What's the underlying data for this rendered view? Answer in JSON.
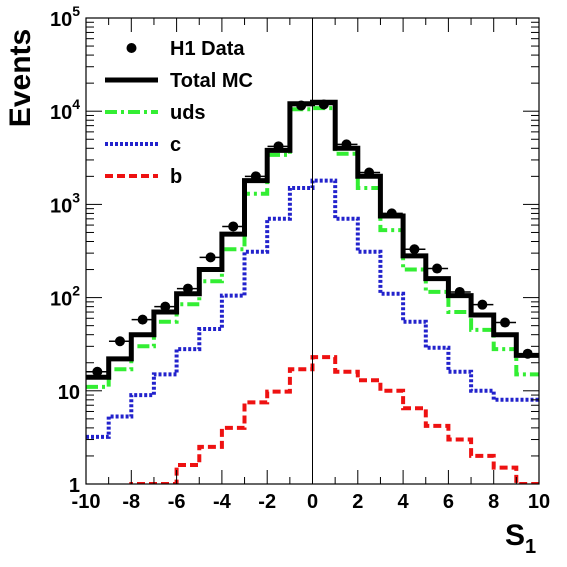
{
  "chart_data": {
    "type": "line",
    "title": "",
    "xlabel": "S",
    "xlabel_subscript": "1",
    "ylabel": "Events",
    "xlim": [
      -10,
      10
    ],
    "ylim": [
      1,
      100000
    ],
    "y_scale": "log",
    "grid": false,
    "legend_position": "top-left",
    "x_ticks": [
      -10,
      -8,
      -6,
      -4,
      -2,
      0,
      2,
      4,
      6,
      8,
      10
    ],
    "x_tick_labels": [
      "-10",
      "-8",
      "-6",
      "-4",
      "-2",
      "0",
      "2",
      "4",
      "6",
      "8",
      "10"
    ],
    "y_ticks": [
      1,
      10,
      100,
      1000,
      10000,
      100000
    ],
    "y_tick_labels": [
      {
        "base": "1",
        "exp": ""
      },
      {
        "base": "10",
        "exp": ""
      },
      {
        "base": "10",
        "exp": "2"
      },
      {
        "base": "10",
        "exp": "3"
      },
      {
        "base": "10",
        "exp": "4"
      },
      {
        "base": "10",
        "exp": "5"
      }
    ],
    "bin_edges": [
      -10,
      -9,
      -8,
      -7,
      -6,
      -5,
      -4,
      -3,
      -2,
      -1,
      0,
      1,
      2,
      3,
      4,
      5,
      6,
      7,
      8,
      9,
      10
    ],
    "data_points": {
      "name": "H1 Data",
      "x": [
        -9.5,
        -8.5,
        -7.5,
        -6.5,
        -5.5,
        -4.5,
        -3.5,
        -2.5,
        -1.5,
        -0.5,
        0.5,
        1.5,
        2.5,
        3.5,
        4.5,
        5.5,
        6.5,
        7.5,
        8.5,
        9.5
      ],
      "y": [
        16,
        34,
        58,
        80,
        125,
        270,
        580,
        2000,
        4200,
        11500,
        11800,
        4400,
        2200,
        800,
        330,
        205,
        115,
        84,
        54,
        25
      ],
      "color": "#000000"
    },
    "series": [
      {
        "name": "Total MC",
        "style": "solid",
        "color": "#000000",
        "values": [
          14,
          22,
          40,
          70,
          110,
          200,
          480,
          1800,
          3800,
          12000,
          12500,
          4000,
          2000,
          750,
          280,
          160,
          105,
          65,
          40,
          24
        ]
      },
      {
        "name": "uds",
        "style": "dash-dot",
        "color": "#33ee33",
        "values": [
          11,
          17,
          30,
          55,
          85,
          150,
          330,
          1300,
          3400,
          10500,
          10800,
          3500,
          1500,
          530,
          200,
          115,
          70,
          45,
          28,
          15
        ]
      },
      {
        "name": "c",
        "style": "dotted",
        "color": "#2222cc",
        "values": [
          3.2,
          5.3,
          9,
          15,
          28,
          46,
          105,
          310,
          700,
          1500,
          1800,
          700,
          310,
          110,
          55,
          29,
          16,
          10,
          8,
          8
        ]
      },
      {
        "name": "b",
        "style": "dashed",
        "color": "#ee1111",
        "values": [
          0.8,
          0.9,
          1,
          1.0,
          1.6,
          2.5,
          4,
          7.5,
          9.8,
          17,
          23,
          16,
          13,
          10,
          6.5,
          4.2,
          3,
          2,
          1.5,
          1
        ]
      }
    ]
  }
}
